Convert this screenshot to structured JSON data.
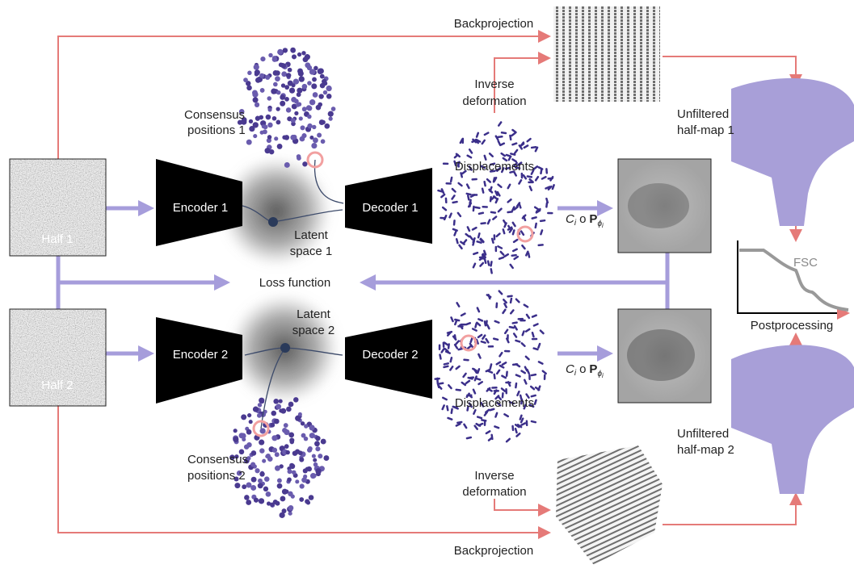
{
  "backprojection_top": "Backprojection",
  "inverse_deformation_top": [
    "Inverse",
    "deformation"
  ],
  "consensus_positions_1": [
    "Consensus",
    "positions 1"
  ],
  "unfiltered_half_map_1": [
    "Unfiltered",
    "half-map 1"
  ],
  "displacements_top": "Displacements",
  "encoder_1": "Encoder 1",
  "decoder_1": "Decoder 1",
  "half_1": "Half 1",
  "latent_space_1": [
    "Latent",
    "space 1"
  ],
  "projection_top": {
    "c": "C",
    "c_sub": "i",
    "op": "o",
    "p": "P",
    "p_sub": "ϕ",
    "p_sub_sub": "i"
  },
  "loss_function": "Loss function",
  "fsc": "FSC",
  "postprocessing": "Postprocessing",
  "latent_space_2": [
    "Latent",
    "space 2"
  ],
  "encoder_2": "Encoder 2",
  "decoder_2": "Decoder 2",
  "half_2": "Half 2",
  "projection_bottom": {
    "c": "C",
    "c_sub": "i",
    "op": "o",
    "p": "P",
    "p_sub": "ϕ",
    "p_sub_sub": "i"
  },
  "displacements_bottom": "Displacements",
  "unfiltered_half_map_2": [
    "Unfiltered",
    "half-map 2"
  ],
  "consensus_positions_2": [
    "Consensus",
    "positions 2"
  ],
  "inverse_deformation_bottom": [
    "Inverse",
    "deformation"
  ],
  "backprojection_bottom": "Backprojection"
}
